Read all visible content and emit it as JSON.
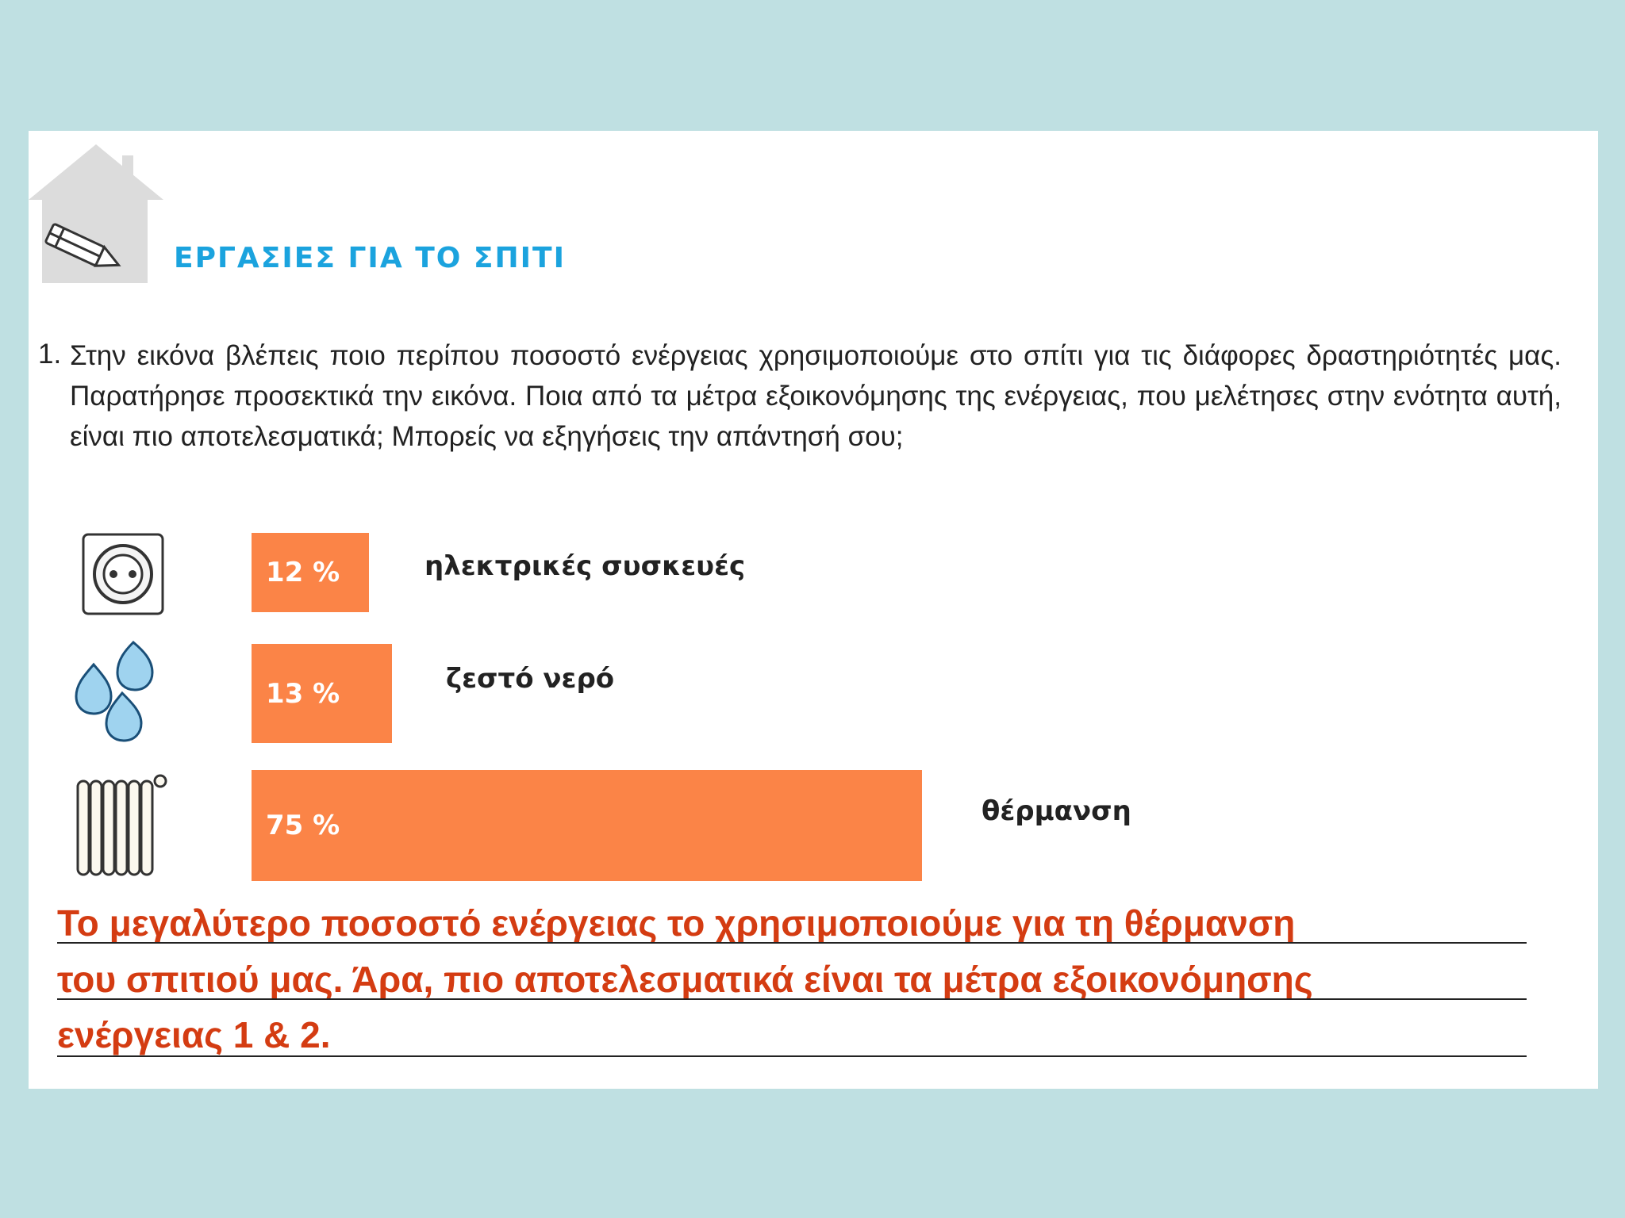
{
  "header": {
    "title": "ΕΡΓΑΣΙΕΣ ΓΙΑ ΤΟ ΣΠΙΤΙ"
  },
  "task": {
    "number": "1.",
    "text": "Στην εικόνα βλέπεις ποιο περίπου ποσοστό ενέργειας χρησιμοποιούμε στο σπίτι για τις διάφορες δραστηριότητές μας. Παρατήρησε προσεκτικά την εικόνα. Ποια από τα μέτρα εξοικονόμησης της ενέργειας, που μελέτησες στην ενότητα αυτή, είναι πιο αποτελεσματικά; Μπορείς να εξηγήσεις την απάντησή σου;"
  },
  "chart_data": {
    "type": "bar",
    "orientation": "horizontal",
    "bar_color": "#fb8447",
    "categories": [
      "ηλεκτρικές συσκευές",
      "ζεστό νερό",
      "θέρμανση"
    ],
    "values": [
      12,
      13,
      75
    ],
    "value_labels": [
      "12 %",
      "13 %",
      "75 %"
    ],
    "icons": [
      "power-socket-icon",
      "water-drops-icon",
      "radiator-icon"
    ]
  },
  "answer": {
    "lines": [
      "Το μεγαλύτερο ποσοστό ενέργειας το χρησιμοποιούμε για τη θέρμανση",
      "του σπιτιού μας. Άρα, πιο αποτελεσματικά είναι τα μέτρα εξοικονόμησης",
      "ενέργειας 1 & 2."
    ],
    "color": "#d43c12"
  }
}
